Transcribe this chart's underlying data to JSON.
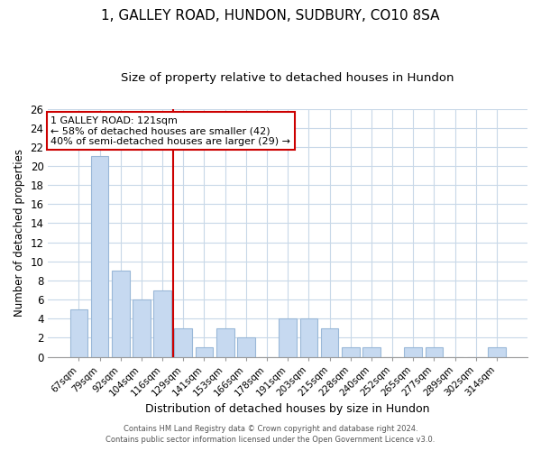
{
  "title": "1, GALLEY ROAD, HUNDON, SUDBURY, CO10 8SA",
  "subtitle": "Size of property relative to detached houses in Hundon",
  "xlabel": "Distribution of detached houses by size in Hundon",
  "ylabel": "Number of detached properties",
  "bar_labels": [
    "67sqm",
    "79sqm",
    "92sqm",
    "104sqm",
    "116sqm",
    "129sqm",
    "141sqm",
    "153sqm",
    "166sqm",
    "178sqm",
    "191sqm",
    "203sqm",
    "215sqm",
    "228sqm",
    "240sqm",
    "252sqm",
    "265sqm",
    "277sqm",
    "289sqm",
    "302sqm",
    "314sqm"
  ],
  "bar_values": [
    5,
    21,
    9,
    6,
    7,
    3,
    1,
    3,
    2,
    0,
    4,
    4,
    3,
    1,
    1,
    0,
    1,
    1,
    0,
    0,
    1
  ],
  "bar_color": "#c6d9f0",
  "bar_edge_color": "#9ab8d8",
  "vline_index": 4,
  "vline_color": "#cc0000",
  "ylim": [
    0,
    26
  ],
  "yticks": [
    0,
    2,
    4,
    6,
    8,
    10,
    12,
    14,
    16,
    18,
    20,
    22,
    24,
    26
  ],
  "annotation_title": "1 GALLEY ROAD: 121sqm",
  "annotation_line1": "← 58% of detached houses are smaller (42)",
  "annotation_line2": "40% of semi-detached houses are larger (29) →",
  "annotation_box_color": "#ffffff",
  "annotation_box_edge": "#cc0000",
  "footer1": "Contains HM Land Registry data © Crown copyright and database right 2024.",
  "footer2": "Contains public sector information licensed under the Open Government Licence v3.0.",
  "bg_color": "#ffffff",
  "grid_color": "#c8d8e8",
  "title_fontsize": 11,
  "subtitle_fontsize": 9.5
}
